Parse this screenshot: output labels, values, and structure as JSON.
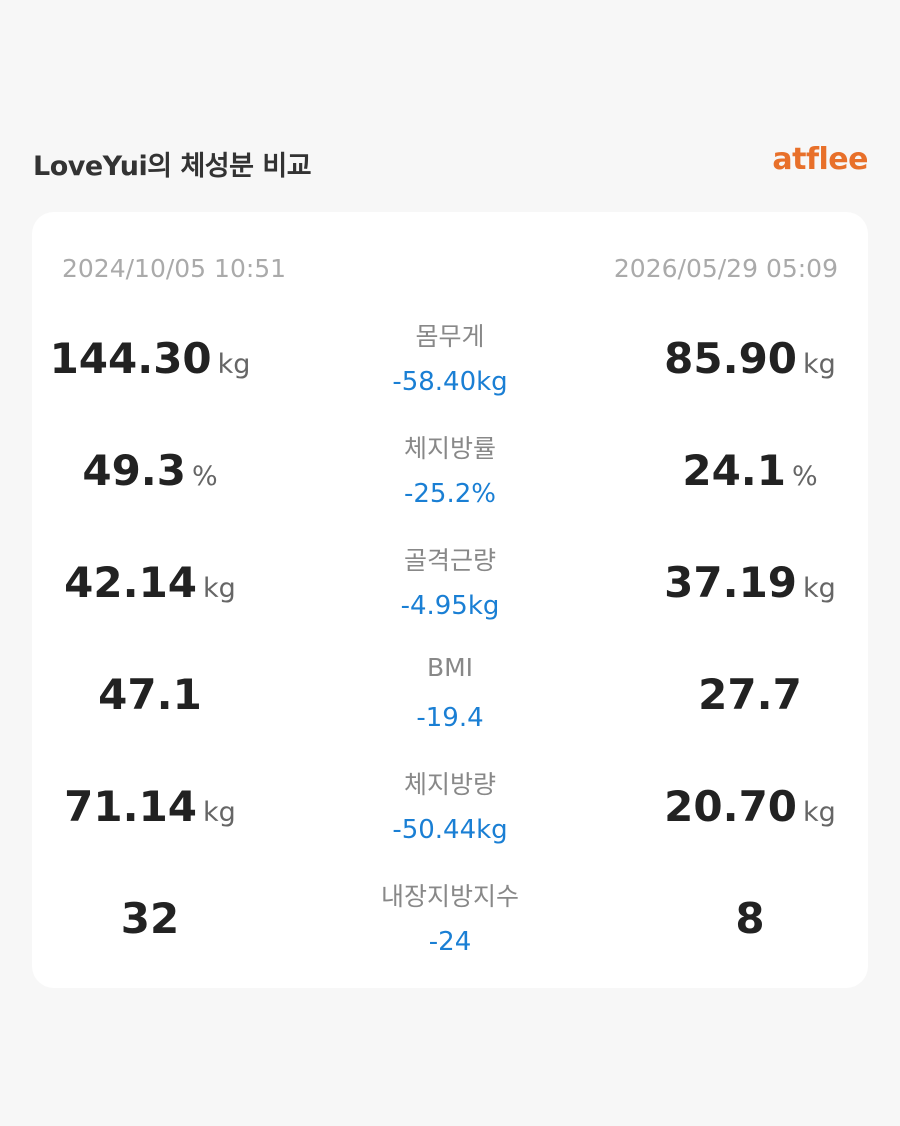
{
  "header": {
    "title": "LoveYui의 체성분 비교",
    "brand": "atflee"
  },
  "card": {
    "left_date": "2024/10/05 10:51",
    "right_date": "2026/05/29 05:09",
    "rows": [
      {
        "label": "몸무게",
        "left": "144.30",
        "left_unit": "kg",
        "diff": "-58.40kg",
        "right": "85.90",
        "right_unit": "kg"
      },
      {
        "label": "체지방률",
        "left": "49.3",
        "left_unit": "%",
        "diff": "-25.2%",
        "right": "24.1",
        "right_unit": "%"
      },
      {
        "label": "골격근량",
        "left": "42.14",
        "left_unit": "kg",
        "diff": "-4.95kg",
        "right": "37.19",
        "right_unit": "kg"
      },
      {
        "label": "BMI",
        "left": "47.1",
        "diff": "-19.4",
        "right": "27.7"
      },
      {
        "label": "체지방량",
        "left": "71.14",
        "left_unit": "kg",
        "diff": "-50.44kg",
        "right": "20.70",
        "right_unit": "kg"
      },
      {
        "label": "내장지방지수",
        "left": "32",
        "diff": "-24",
        "right": "8"
      }
    ]
  }
}
